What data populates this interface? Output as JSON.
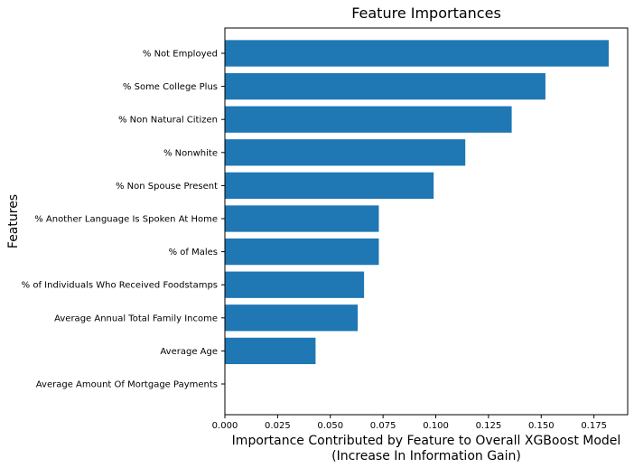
{
  "chart_data": {
    "type": "bar",
    "orientation": "horizontal",
    "title": "Feature Importances",
    "xlabel": "Importance Contributed by Feature to Overall XGBoost Model",
    "xlabel_line2": "(Increase In Information Gain)",
    "ylabel": "Features",
    "xlim": [
      0,
      0.191
    ],
    "xticks": [
      "0.000",
      "0.025",
      "0.050",
      "0.075",
      "0.100",
      "0.125",
      "0.150",
      "0.175"
    ],
    "categories": [
      "% Not Employed",
      "% Some College Plus",
      "% Non Natural Citizen",
      "% Nonwhite",
      "% Non Spouse Present",
      "% Another Language Is Spoken At Home",
      "% of Males",
      "% of Individuals Who Received Foodstamps",
      "Average Annual Total Family Income",
      "Average Age",
      "Average Amount Of Mortgage Payments"
    ],
    "values": [
      0.182,
      0.152,
      0.136,
      0.114,
      0.099,
      0.073,
      0.073,
      0.066,
      0.063,
      0.043,
      0.0
    ],
    "bar_color": "#1f77b4",
    "grid": false,
    "legend": "none"
  }
}
